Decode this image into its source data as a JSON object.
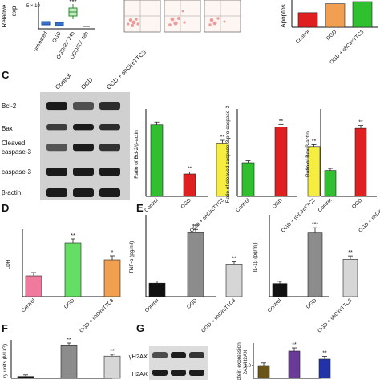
{
  "panel_labels": {
    "C": "C",
    "D": "D",
    "E": "E",
    "F": "F",
    "G": "G"
  },
  "top_strip": {
    "ylabel_a": "Relative",
    "ylabel_b": "exp",
    "axis_tick": "5 × 10",
    "categories": [
      "untreated",
      "OGD",
      "OGD/RX 24h",
      "OGD/RX 48h"
    ],
    "significance": "***",
    "apoptosis_ylabel": "Apoptos",
    "apoptosis_categories": [
      "Control",
      "OGD",
      "OGD + shCircTTC3"
    ]
  },
  "western_c": {
    "column_labels": [
      "Control",
      "OGD",
      "OGD + shCircTTC3"
    ],
    "row_labels": [
      "Bcl-2",
      "Bax",
      "Cleaved caspase-3",
      "caspase-3",
      "β-actin"
    ]
  },
  "western_g": {
    "row_labels": [
      "γH2AX",
      "H2AX"
    ]
  },
  "colors": {
    "green": "#2fbf2f",
    "red": "#e02020",
    "yellow": "#f5ee40",
    "pink": "#f07a9e",
    "lightgreen": "#63e063",
    "orange": "#f0a050",
    "black": "#111111",
    "gray": "#8c8c8c",
    "lightgray": "#d6d6d6",
    "brown": "#6b5418",
    "purple": "#6a3a98",
    "blue": "#2233aa"
  },
  "chart_data": [
    {
      "id": "apoptosis_top",
      "type": "bar",
      "categories": [
        "Control",
        "OGD",
        "OGD + shCircTTC3"
      ],
      "values": [
        3.4,
        5.5,
        6.0
      ],
      "colors": [
        "red",
        "orange",
        "green"
      ],
      "ylim": [
        0,
        6
      ],
      "sig": [
        "",
        "",
        ""
      ],
      "xlabel": "",
      "ylabel": "Apoptos",
      "tick_labels": []
    },
    {
      "id": "bcl2",
      "type": "bar",
      "categories": [
        "Control",
        "OGD",
        "OGD + shCircTTC3"
      ],
      "values": [
        1.02,
        0.32,
        0.76
      ],
      "errors": [
        0.04,
        0.03,
        0.04
      ],
      "colors": [
        "green",
        "red",
        "yellow"
      ],
      "ylim": [
        0,
        1.2
      ],
      "sig": [
        "",
        "**",
        "**"
      ],
      "xlabel": "",
      "ylabel": "Ratio of Bcl-2/β-actin",
      "tick_labels": []
    },
    {
      "id": "cleaved_casp3",
      "type": "bar",
      "categories": [
        "Control",
        "OGD",
        "OGD + shCircTTC3"
      ],
      "values": [
        0.52,
        1.07,
        0.77
      ],
      "errors": [
        0.03,
        0.04,
        0.03
      ],
      "colors": [
        "green",
        "red",
        "yellow"
      ],
      "ylim": [
        0,
        1.3
      ],
      "sig": [
        "",
        "**",
        "**"
      ],
      "xlabel": "",
      "ylabel": "Ratio of cleaved caspase-3/pro caspase-3",
      "tick_labels": []
    },
    {
      "id": "bax",
      "type": "bar",
      "categories": [
        "Control",
        "OGD",
        "OGD + shCircTTC3"
      ],
      "values": [
        0.37,
        0.97,
        0.72
      ],
      "errors": [
        0.03,
        0.04,
        0.04
      ],
      "colors": [
        "green",
        "red",
        "yellow"
      ],
      "ylim": [
        0,
        1.2
      ],
      "sig": [
        "",
        "**",
        "**"
      ],
      "xlabel": "",
      "ylabel": "Ratio of Bax/β-actin",
      "tick_labels": []
    },
    {
      "id": "ldh",
      "type": "bar",
      "categories": [
        "Control",
        "OGD",
        "OGD + shCircTTC3"
      ],
      "values": [
        1.76,
        2.17,
        1.96
      ],
      "errors": [
        0.04,
        0.05,
        0.05
      ],
      "colors": [
        "pink",
        "lightgreen",
        "orange"
      ],
      "ylim": [
        1.5,
        2.3
      ],
      "sig": [
        "",
        "**",
        "*"
      ],
      "xlabel": "",
      "ylabel": "LDH",
      "tick_labels": []
    },
    {
      "id": "tnf",
      "type": "bar",
      "categories": [
        "Control",
        "OGD",
        "OGD + shCircTTC3"
      ],
      "values": [
        60,
        285,
        145
      ],
      "errors": [
        10,
        14,
        10
      ],
      "colors": [
        "black",
        "gray",
        "lightgray"
      ],
      "ylim": [
        0,
        350
      ],
      "sig": [
        "",
        "***",
        "**"
      ],
      "xlabel": "",
      "ylabel": "TNF-α (pg/ml)",
      "tick_labels": []
    },
    {
      "id": "il1b",
      "type": "bar",
      "categories": [
        "Control",
        "OGD",
        "OGD + shCircTTC3"
      ],
      "values": [
        70,
        340,
        200
      ],
      "errors": [
        12,
        28,
        18
      ],
      "colors": [
        "black",
        "gray",
        "lightgray"
      ],
      "ylim": [
        0,
        420
      ],
      "sig": [
        "",
        "***",
        "**"
      ],
      "xlabel": "",
      "ylabel": "IL-1β (pg/ml)",
      "tick_labels": []
    },
    {
      "id": "f_panel",
      "type": "bar",
      "categories": [
        "",
        "",
        ""
      ],
      "values": [
        0.05,
        0.9,
        0.6
      ],
      "errors": [
        0.04,
        0.05,
        0.05
      ],
      "colors": [
        "black",
        "gray",
        "lightgray"
      ],
      "ylim": [
        0,
        0.95
      ],
      "sig": [
        "",
        "**",
        "**"
      ],
      "xlabel": "",
      "ylabel": "ry units (MUG)",
      "tick_labels": []
    },
    {
      "id": "g_panel",
      "type": "bar",
      "categories": [
        "",
        "",
        ""
      ],
      "values": [
        1.0,
        1.45,
        1.2
      ],
      "errors": [
        0.08,
        0.1,
        0.09
      ],
      "colors": [
        "brown",
        "purple",
        "blue"
      ],
      "ylim": [
        0.6,
        1.6
      ],
      "sig": [
        "",
        "**",
        "**"
      ],
      "xlabel": "",
      "ylabel": "rotein expression",
      "ylabel2": "2AX/H2AX",
      "tick_labels": [
        "1.0"
      ]
    }
  ]
}
